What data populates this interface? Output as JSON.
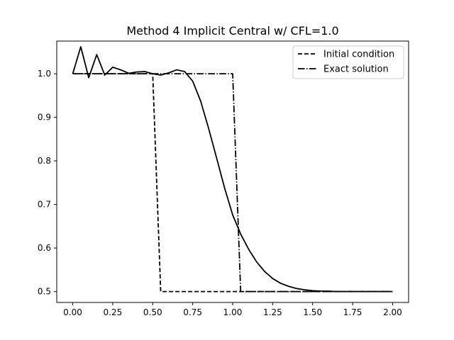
{
  "chart_data": {
    "type": "line",
    "title": "Method 4 Implicit Central w/ CFL=1.0",
    "xlabel": "",
    "ylabel": "",
    "xlim": [
      -0.1,
      2.1
    ],
    "ylim": [
      0.475,
      1.075
    ],
    "xticks": [
      0.0,
      0.25,
      0.5,
      0.75,
      1.0,
      1.25,
      1.5,
      1.75,
      2.0
    ],
    "xtick_labels": [
      "0.00",
      "0.25",
      "0.50",
      "0.75",
      "1.00",
      "1.25",
      "1.50",
      "1.75",
      "2.00"
    ],
    "yticks": [
      0.5,
      0.6,
      0.7,
      0.8,
      0.9,
      1.0
    ],
    "ytick_labels": [
      "0.5",
      "0.6",
      "0.7",
      "0.8",
      "0.9",
      "1.0"
    ],
    "grid": false,
    "legend_position": "top-right",
    "series": [
      {
        "name": "Initial condition",
        "style": "dashed",
        "color": "#000000",
        "x": [
          0.0,
          0.5,
          0.55,
          2.0
        ],
        "y": [
          1.0,
          1.0,
          0.5,
          0.5
        ]
      },
      {
        "name": "Exact solution",
        "style": "dashdot",
        "color": "#000000",
        "x": [
          0.0,
          1.0,
          1.05,
          2.0
        ],
        "y": [
          1.0,
          1.0,
          0.5,
          0.5
        ]
      },
      {
        "style": "solid",
        "color": "#000000",
        "x": [
          0.0,
          0.05,
          0.1,
          0.15,
          0.2,
          0.25,
          0.3,
          0.35,
          0.4,
          0.45,
          0.5,
          0.55,
          0.6,
          0.65,
          0.7,
          0.75,
          0.8,
          0.85,
          0.9,
          0.95,
          1.0,
          1.05,
          1.1,
          1.15,
          1.2,
          1.25,
          1.3,
          1.35,
          1.4,
          1.45,
          1.5,
          1.55,
          1.6,
          1.65,
          1.7,
          1.75,
          1.8,
          1.85,
          1.9,
          1.95,
          2.0
        ],
        "y": [
          1.0,
          1.062,
          0.991,
          1.044,
          0.997,
          1.015,
          1.009,
          1.001,
          1.004,
          1.005,
          1.0,
          0.997,
          1.002,
          1.009,
          1.005,
          0.983,
          0.937,
          0.874,
          0.806,
          0.737,
          0.676,
          0.632,
          0.597,
          0.568,
          0.546,
          0.53,
          0.519,
          0.512,
          0.507,
          0.504,
          0.502,
          0.501,
          0.501,
          0.5,
          0.5,
          0.5,
          0.5,
          0.5,
          0.5,
          0.5,
          0.5
        ]
      }
    ]
  }
}
